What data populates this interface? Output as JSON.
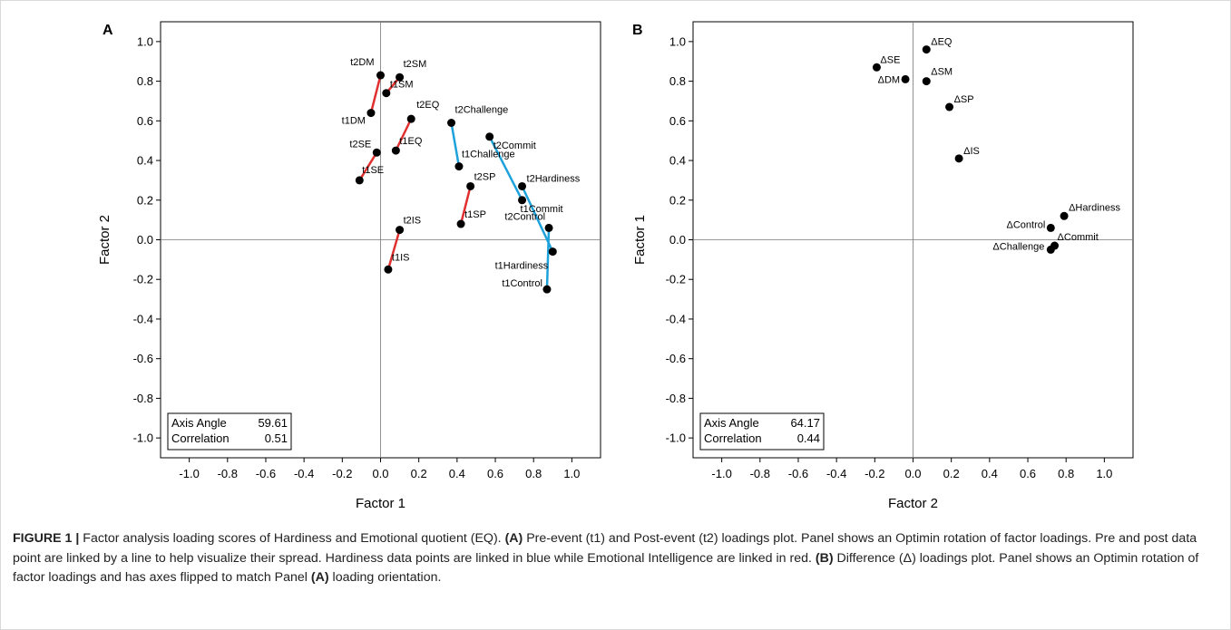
{
  "chart_data": [
    {
      "type": "scatter",
      "panel": "A",
      "xlabel": "Factor 1",
      "ylabel": "Factor 2",
      "xlim": [
        -1.15,
        1.15
      ],
      "ylim": [
        -1.1,
        1.1
      ],
      "xticks": [
        "-1.0",
        "-0.8",
        "-0.6",
        "-0.4",
        "-0.2",
        "0.0",
        "0.2",
        "0.4",
        "0.6",
        "0.8",
        "1.0"
      ],
      "yticks": [
        "-1.0",
        "-0.8",
        "-0.6",
        "-0.4",
        "-0.2",
        "0.0",
        "0.2",
        "0.4",
        "0.6",
        "0.8",
        "1.0"
      ],
      "points": [
        {
          "label": "t2DM",
          "x": 0.0,
          "y": 0.83
        },
        {
          "label": "t2SM",
          "x": 0.1,
          "y": 0.82
        },
        {
          "label": "t1SM",
          "x": 0.03,
          "y": 0.74
        },
        {
          "label": "t1DM",
          "x": -0.05,
          "y": 0.64
        },
        {
          "label": "t2EQ",
          "x": 0.16,
          "y": 0.61
        },
        {
          "label": "t1EQ",
          "x": 0.08,
          "y": 0.45
        },
        {
          "label": "t2SE",
          "x": -0.02,
          "y": 0.44
        },
        {
          "label": "t1SE",
          "x": -0.11,
          "y": 0.3
        },
        {
          "label": "t2IS",
          "x": 0.1,
          "y": 0.05
        },
        {
          "label": "t1IS",
          "x": 0.04,
          "y": -0.15
        },
        {
          "label": "t2Challenge",
          "x": 0.37,
          "y": 0.59
        },
        {
          "label": "t1Challenge",
          "x": 0.41,
          "y": 0.37
        },
        {
          "label": "t2Commit",
          "x": 0.57,
          "y": 0.52
        },
        {
          "label": "t2SP",
          "x": 0.47,
          "y": 0.27
        },
        {
          "label": "t1SP",
          "x": 0.42,
          "y": 0.08
        },
        {
          "label": "t2Hardiness",
          "x": 0.74,
          "y": 0.27
        },
        {
          "label": "t1Commit",
          "x": 0.74,
          "y": 0.2
        },
        {
          "label": "t2Control",
          "x": 0.88,
          "y": 0.06
        },
        {
          "label": "t1Hardiness",
          "x": 0.9,
          "y": -0.06
        },
        {
          "label": "t1Control",
          "x": 0.87,
          "y": -0.25
        }
      ],
      "links": [
        {
          "from": "t1DM",
          "to": "t2DM",
          "color": "#e03030"
        },
        {
          "from": "t1SM",
          "to": "t2SM",
          "color": "#e03030"
        },
        {
          "from": "t1EQ",
          "to": "t2EQ",
          "color": "#e03030"
        },
        {
          "from": "t1SE",
          "to": "t2SE",
          "color": "#e03030"
        },
        {
          "from": "t1IS",
          "to": "t2IS",
          "color": "#e03030"
        },
        {
          "from": "t1SP",
          "to": "t2SP",
          "color": "#e03030"
        },
        {
          "from": "t1Challenge",
          "to": "t2Challenge",
          "color": "#1ea2dc"
        },
        {
          "from": "t1Commit",
          "to": "t2Commit",
          "color": "#1ea2dc"
        },
        {
          "from": "t1Hardiness",
          "to": "t2Hardiness",
          "color": "#1ea2dc"
        },
        {
          "from": "t1Control",
          "to": "t2Control",
          "color": "#1ea2dc"
        }
      ],
      "stats": [
        {
          "label": "Axis Angle",
          "value": "59.61"
        },
        {
          "label": "Correlation",
          "value": "0.51"
        }
      ]
    },
    {
      "type": "scatter",
      "panel": "B",
      "xlabel": "Factor 2",
      "ylabel": "Factor 1",
      "xlim": [
        -1.15,
        1.15
      ],
      "ylim": [
        -1.1,
        1.1
      ],
      "xticks": [
        "-1.0",
        "-0.8",
        "-0.6",
        "-0.4",
        "-0.2",
        "0.0",
        "0.2",
        "0.4",
        "0.6",
        "0.8",
        "1.0"
      ],
      "yticks": [
        "-1.0",
        "-0.8",
        "-0.6",
        "-0.4",
        "-0.2",
        "0.0",
        "0.2",
        "0.4",
        "0.6",
        "0.8",
        "1.0"
      ],
      "points": [
        {
          "label": "ΔEQ",
          "x": 0.07,
          "y": 0.96
        },
        {
          "label": "ΔSE",
          "x": -0.19,
          "y": 0.87
        },
        {
          "label": "ΔDM",
          "x": -0.04,
          "y": 0.81
        },
        {
          "label": "ΔSM",
          "x": 0.07,
          "y": 0.8
        },
        {
          "label": "ΔSP",
          "x": 0.19,
          "y": 0.67
        },
        {
          "label": "ΔIS",
          "x": 0.24,
          "y": 0.41
        },
        {
          "label": "ΔHardiness",
          "x": 0.79,
          "y": 0.12
        },
        {
          "label": "ΔControl",
          "x": 0.72,
          "y": 0.06
        },
        {
          "label": "ΔChallenge",
          "x": 0.72,
          "y": -0.05
        },
        {
          "label": "ΔCommit",
          "x": 0.74,
          "y": -0.03
        }
      ],
      "links": [],
      "stats": [
        {
          "label": "Axis Angle",
          "value": "64.17"
        },
        {
          "label": "Correlation",
          "value": "0.44"
        }
      ]
    }
  ],
  "caption": {
    "figure_label": "FIGURE 1 |",
    "intro": " Factor analysis loading scores of Hardiness and Emotional quotient (EQ). ",
    "a_marker": "(A)",
    "a_text": " Pre-event (t1) and Post-event (t2) loadings plot. Panel shows an Optimin rotation of factor loadings. Pre and post data point are linked by a line to help visualize their spread. Hardiness data points are linked in blue while Emotional Intelligence are linked in red. ",
    "b_marker": "(B)",
    "b_text": " Difference (Δ) loadings plot. Panel shows an Optimin rotation of factor loadings and has axes flipped to match Panel ",
    "b_marker2": "(A)",
    "b_text2": " loading orientation."
  }
}
